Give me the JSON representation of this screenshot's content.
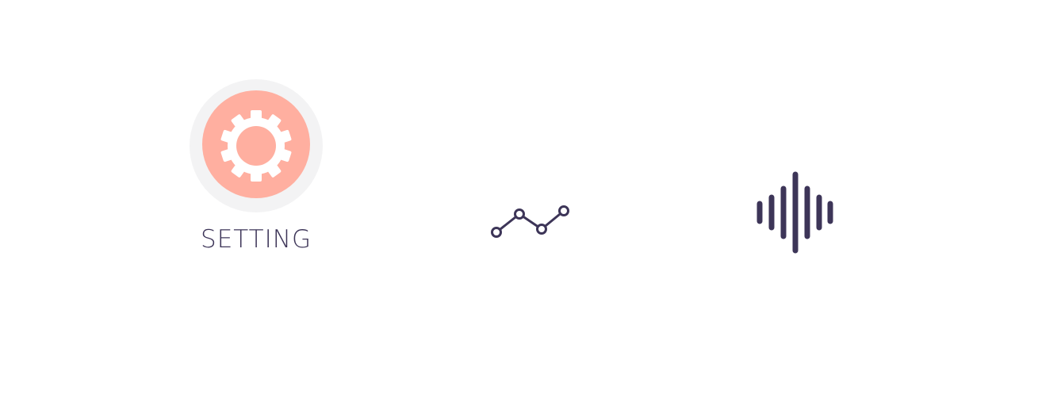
{
  "setting": {
    "label": "SETTING",
    "icon": "gear-icon"
  },
  "icons": {
    "line_chart": "line-chart-icon",
    "sound_wave": "sound-wave-icon"
  },
  "colors": {
    "ring": "#f3f3f4",
    "accent": "#ffafa0",
    "icon_dark": "#3d3558",
    "gear": "#ffffff"
  }
}
